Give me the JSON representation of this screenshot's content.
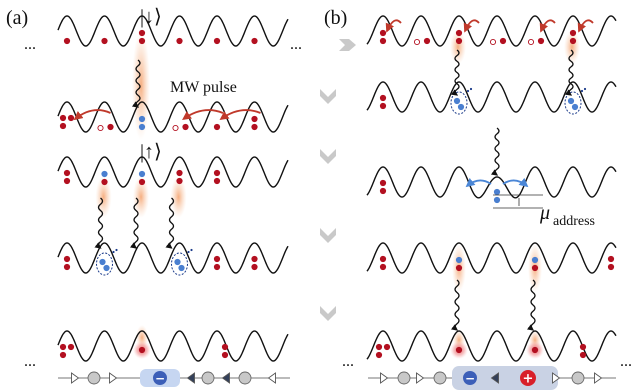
{
  "panel_a": {
    "label": "(a)",
    "state_top": "|↓⟩",
    "state_bottom": "|↑⟩",
    "pulse_label": "MW pulse",
    "ellipsis": "..."
  },
  "panel_b": {
    "label": "(b)",
    "address_label_main": "μ",
    "address_label_sub": "address",
    "ellipsis": "..."
  },
  "chain_a": {
    "minus_symbol": "−",
    "plus_symbol": "+"
  },
  "chain_b": {
    "minus_symbol": "−",
    "plus_symbol": "+"
  },
  "colors": {
    "red_atom": "#b31020",
    "blue_atom": "#4a7fd0",
    "glow": "#f6b48a",
    "arrow_red": "#c0392b",
    "arrow_blue": "#4a86d6",
    "gray_arrow": "#c9c9c9",
    "chain_blue": "#3c5fb8",
    "chain_red": "#d8202a"
  }
}
